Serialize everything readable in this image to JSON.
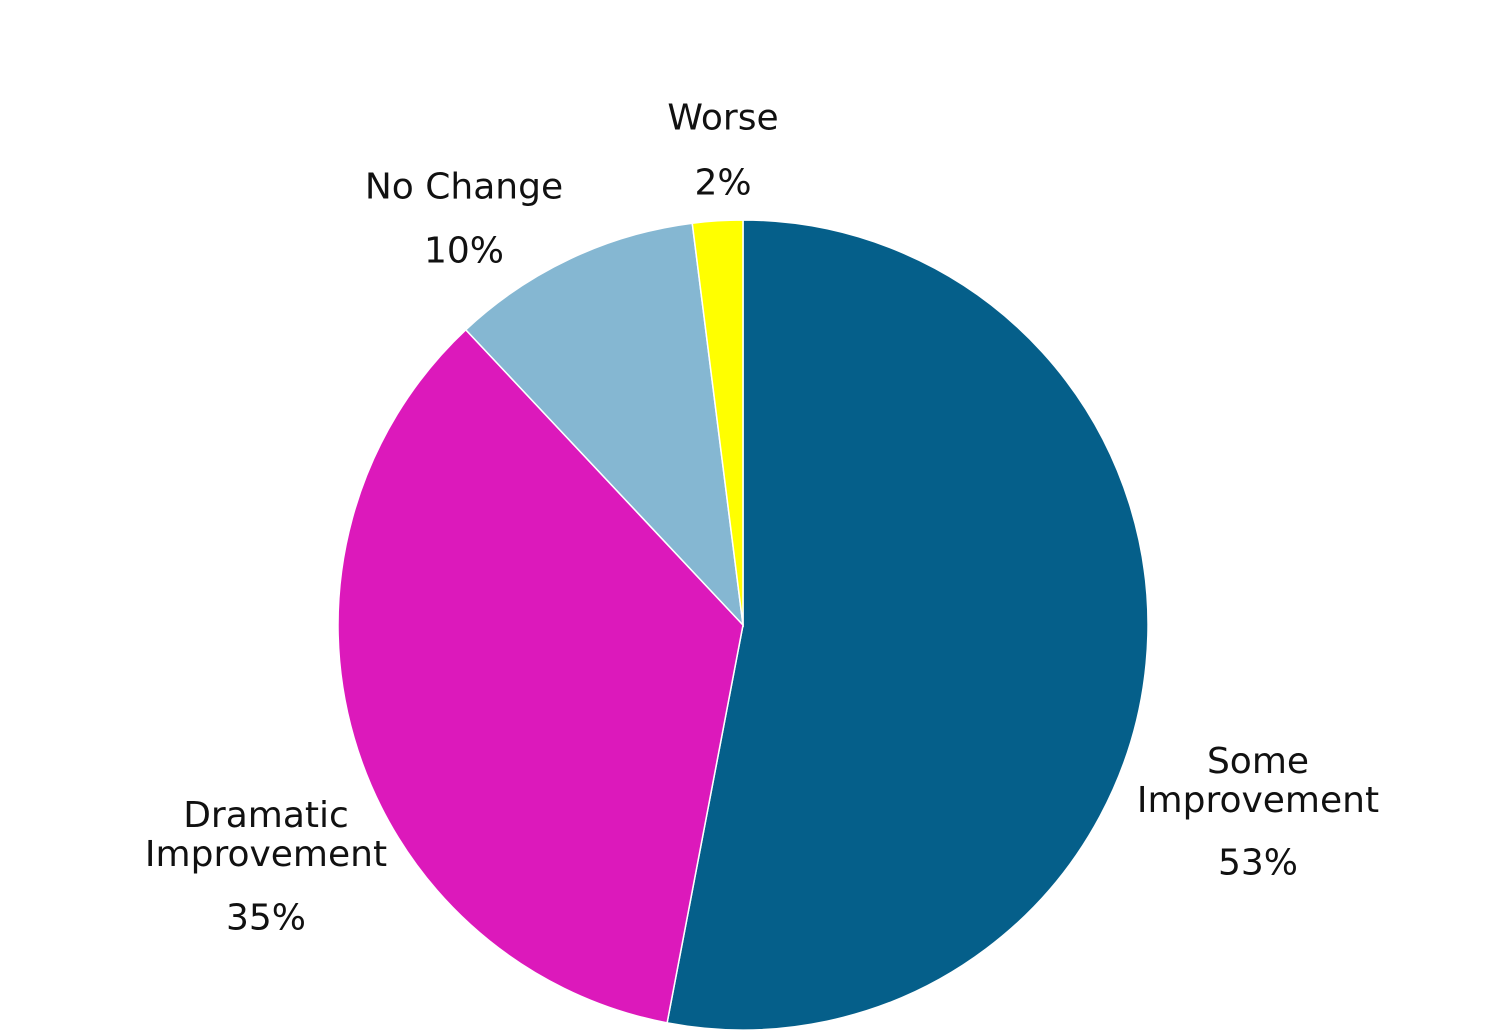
{
  "chart_data": {
    "type": "pie",
    "categories": [
      "Some Improvement",
      "Dramatic Improvement",
      "No Change",
      "Worse"
    ],
    "values": [
      53,
      35,
      10,
      2
    ],
    "value_labels": [
      "53%",
      "35%",
      "10%",
      "2%"
    ],
    "colors": [
      "#055f8a",
      "#dc19bb",
      "#85b7d2",
      "#ffff00"
    ]
  }
}
